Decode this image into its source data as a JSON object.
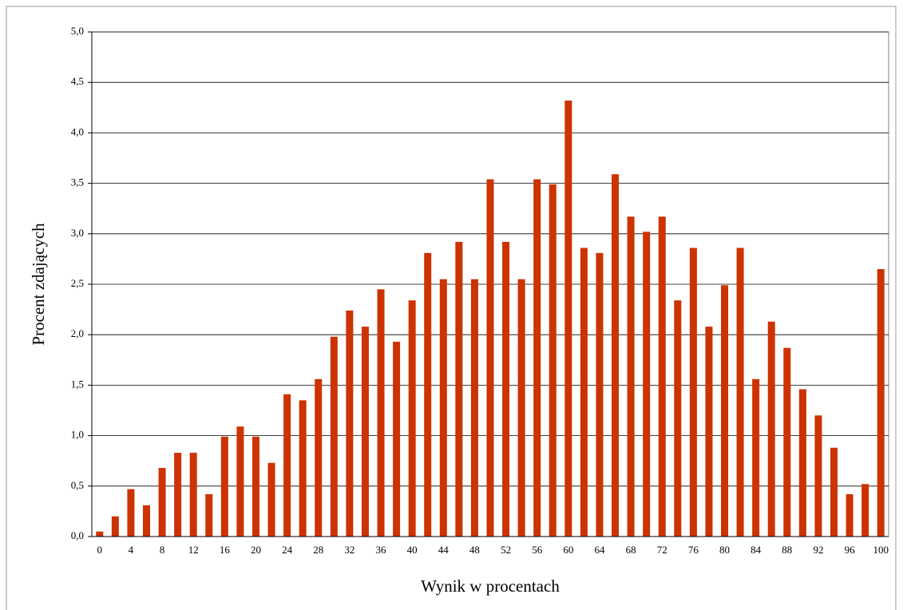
{
  "chart_data": {
    "type": "bar",
    "x_label": "Wynik w procentach",
    "y_label": "Procent zdających",
    "categories": [
      0,
      null,
      4,
      null,
      8,
      null,
      12,
      null,
      16,
      null,
      20,
      null,
      24,
      null,
      28,
      null,
      32,
      null,
      36,
      null,
      40,
      null,
      44,
      null,
      48,
      null,
      52,
      null,
      56,
      null,
      60,
      null,
      64,
      null,
      68,
      null,
      72,
      null,
      76,
      null,
      80,
      null,
      84,
      null,
      88,
      null,
      92,
      null,
      96,
      null,
      100
    ],
    "values": [
      0.05,
      0.2,
      0.47,
      0.31,
      0.68,
      0.83,
      0.83,
      0.42,
      0.99,
      1.09,
      0.99,
      0.73,
      1.41,
      1.35,
      1.56,
      1.98,
      2.24,
      2.08,
      2.45,
      1.93,
      2.34,
      2.81,
      2.55,
      2.92,
      2.55,
      3.54,
      2.92,
      2.55,
      3.54,
      3.49,
      4.32,
      2.86,
      2.81,
      3.59,
      3.17,
      3.02,
      3.17,
      2.34,
      2.86,
      2.08,
      2.49,
      2.86,
      1.56,
      2.13,
      1.87,
      1.46,
      1.2,
      0.88,
      0.42,
      0.52,
      2.65
    ],
    "color": "#cc3300",
    "ylim": [
      0,
      5
    ],
    "yticks": [
      {
        "value": 0,
        "label": "0,0"
      },
      {
        "value": 0.5,
        "label": "0,5"
      },
      {
        "value": 1,
        "label": "1,0"
      },
      {
        "value": 1.5,
        "label": "1,5"
      },
      {
        "value": 2,
        "label": "2,0"
      },
      {
        "value": 2.5,
        "label": "2,5"
      },
      {
        "value": 3,
        "label": "3,0"
      },
      {
        "value": 3.5,
        "label": "3,5"
      },
      {
        "value": 4,
        "label": "4,0"
      },
      {
        "value": 4.5,
        "label": "4,5"
      },
      {
        "value": 5,
        "label": "5,0"
      }
    ],
    "grid": true
  }
}
